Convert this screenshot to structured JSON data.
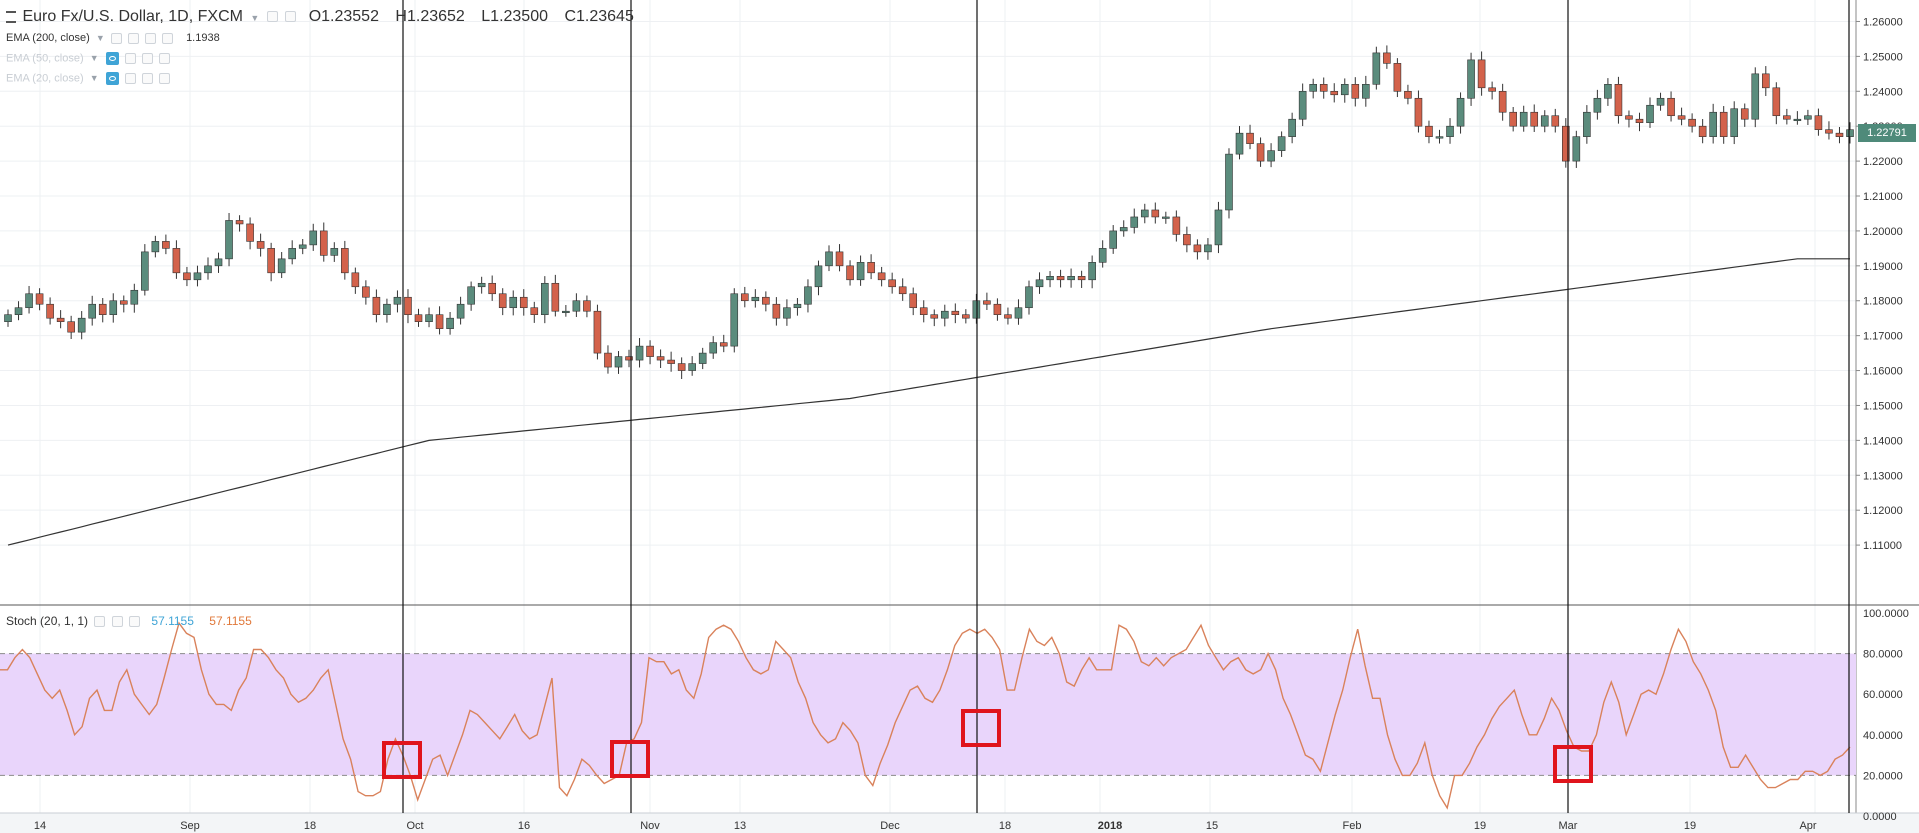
{
  "header": {
    "symbol": "Euro Fx/U.S. Dollar, 1D, FXCM",
    "open": "O1.23552",
    "high": "H1.23652",
    "low": "L1.23500",
    "close": "C1.23645",
    "ema200_label": "EMA (200, close)",
    "ema200_value": "1.1938",
    "ema50_label": "EMA (50, close)",
    "ema20_label": "EMA (20, close)"
  },
  "stoch": {
    "label": "Stoch (20, 1, 1)",
    "k_value": "57.1155",
    "d_value": "57.1155"
  },
  "price_badge": "1.22791",
  "chart_data": [
    {
      "type": "candlestick",
      "price_axis": {
        "ticks": [
          "1.26000",
          "1.25000",
          "1.24000",
          "1.23000",
          "1.22000",
          "1.21000",
          "1.20000",
          "1.19000",
          "1.18000",
          "1.17000",
          "1.16000",
          "1.15000",
          "1.14000",
          "1.13000",
          "1.12000",
          "1.11000"
        ],
        "range": [
          1.1,
          1.263
        ]
      },
      "time_axis": [
        "14",
        "Sep",
        "18",
        "Oct",
        "16",
        "Nov",
        "13",
        "Dec",
        "18",
        "2018",
        "15",
        "Feb",
        "19",
        "Mar",
        "19",
        "Apr"
      ],
      "closes": [
        1.176,
        1.178,
        1.182,
        1.179,
        1.175,
        1.174,
        1.171,
        1.175,
        1.179,
        1.176,
        1.18,
        1.179,
        1.183,
        1.194,
        1.197,
        1.195,
        1.188,
        1.186,
        1.188,
        1.19,
        1.192,
        1.203,
        1.202,
        1.197,
        1.195,
        1.188,
        1.192,
        1.195,
        1.196,
        1.2,
        1.193,
        1.195,
        1.188,
        1.184,
        1.181,
        1.176,
        1.179,
        1.181,
        1.176,
        1.174,
        1.176,
        1.172,
        1.175,
        1.179,
        1.184,
        1.185,
        1.182,
        1.178,
        1.181,
        1.178,
        1.176,
        1.185,
        1.177,
        1.177,
        1.18,
        1.177,
        1.165,
        1.161,
        1.164,
        1.163,
        1.167,
        1.164,
        1.163,
        1.162,
        1.16,
        1.162,
        1.165,
        1.168,
        1.167,
        1.182,
        1.18,
        1.181,
        1.179,
        1.175,
        1.178,
        1.179,
        1.184,
        1.19,
        1.194,
        1.19,
        1.186,
        1.191,
        1.188,
        1.186,
        1.184,
        1.182,
        1.178,
        1.176,
        1.175,
        1.177,
        1.176,
        1.175,
        1.18,
        1.179,
        1.176,
        1.175,
        1.178,
        1.184,
        1.186,
        1.187,
        1.186,
        1.187,
        1.186,
        1.191,
        1.195,
        1.2,
        1.201,
        1.204,
        1.206,
        1.204,
        1.204,
        1.199,
        1.196,
        1.194,
        1.196,
        1.206,
        1.222,
        1.228,
        1.225,
        1.22,
        1.223,
        1.227,
        1.232,
        1.24,
        1.242,
        1.24,
        1.239,
        1.242,
        1.238,
        1.242,
        1.251,
        1.248,
        1.24,
        1.238,
        1.23,
        1.227,
        1.227,
        1.23,
        1.238,
        1.249,
        1.241,
        1.24,
        1.234,
        1.23,
        1.234,
        1.23,
        1.233,
        1.23,
        1.22,
        1.227,
        1.234,
        1.238,
        1.242,
        1.233,
        1.232,
        1.231,
        1.236,
        1.238,
        1.233,
        1.232,
        1.23,
        1.227,
        1.234,
        1.227,
        1.235,
        1.232,
        1.245,
        1.241,
        1.233,
        1.232,
        1.232,
        1.233,
        1.229,
        1.228,
        1.227,
        1.229
      ]
    },
    {
      "type": "line",
      "series": [
        {
          "name": "EMA (200, close)",
          "x_index": [
            0,
            40,
            80,
            120,
            170
          ],
          "values": [
            1.11,
            1.14,
            1.152,
            1.172,
            1.192
          ]
        }
      ]
    },
    {
      "type": "line",
      "range": [
        0,
        100
      ],
      "ticks": [
        "100.0000",
        "80.0000",
        "60.0000",
        "40.0000",
        "20.0000",
        "0.0000"
      ],
      "overbought": 80,
      "oversold": 20,
      "series": [
        {
          "name": "Stoch (20, 1, 1)",
          "values": [
            72,
            72,
            78,
            82,
            78,
            70,
            62,
            58,
            62,
            52,
            40,
            44,
            58,
            62,
            52,
            52,
            66,
            72,
            60,
            55,
            50,
            55,
            68,
            82,
            95,
            90,
            88,
            72,
            60,
            55,
            55,
            52,
            62,
            68,
            82,
            82,
            78,
            72,
            68,
            60,
            56,
            58,
            62,
            68,
            72,
            55,
            38,
            28,
            12,
            10,
            10,
            12,
            28,
            38,
            30,
            20,
            8,
            18,
            28,
            30,
            20,
            30,
            40,
            52,
            50,
            46,
            42,
            38,
            44,
            50,
            42,
            38,
            40,
            54,
            68,
            14,
            10,
            18,
            28,
            25,
            20,
            16,
            18,
            20,
            36,
            38,
            46,
            78,
            76,
            76,
            70,
            72,
            62,
            58,
            70,
            88,
            92,
            94,
            92,
            86,
            78,
            72,
            70,
            72,
            86,
            82,
            78,
            66,
            58,
            46,
            40,
            36,
            38,
            46,
            42,
            36,
            20,
            15,
            26,
            35,
            46,
            54,
            62,
            64,
            58,
            56,
            62,
            72,
            84,
            90,
            92,
            90,
            92,
            88,
            82,
            62,
            62,
            78,
            92,
            86,
            84,
            88,
            80,
            66,
            64,
            72,
            78,
            72,
            72,
            72,
            94,
            92,
            86,
            76,
            74,
            78,
            74,
            78,
            80,
            82,
            88,
            94,
            84,
            78,
            72,
            76,
            78,
            72,
            70,
            72,
            80,
            72,
            58,
            50,
            40,
            30,
            28,
            22,
            36,
            50,
            62,
            78,
            92,
            74,
            58,
            58,
            40,
            28,
            20,
            20,
            26,
            36,
            20,
            10,
            4,
            20,
            20,
            26,
            34,
            40,
            48,
            54,
            58,
            62,
            50,
            40,
            40,
            48,
            58,
            52,
            42,
            34,
            32,
            32,
            40,
            56,
            66,
            56,
            40,
            50,
            60,
            62,
            60,
            70,
            82,
            92,
            86,
            76,
            70,
            62,
            52,
            34,
            24,
            24,
            30,
            24,
            18,
            14,
            14,
            16,
            18,
            18,
            22,
            22,
            20,
            22,
            28,
            30,
            34
          ]
        }
      ]
    }
  ]
}
